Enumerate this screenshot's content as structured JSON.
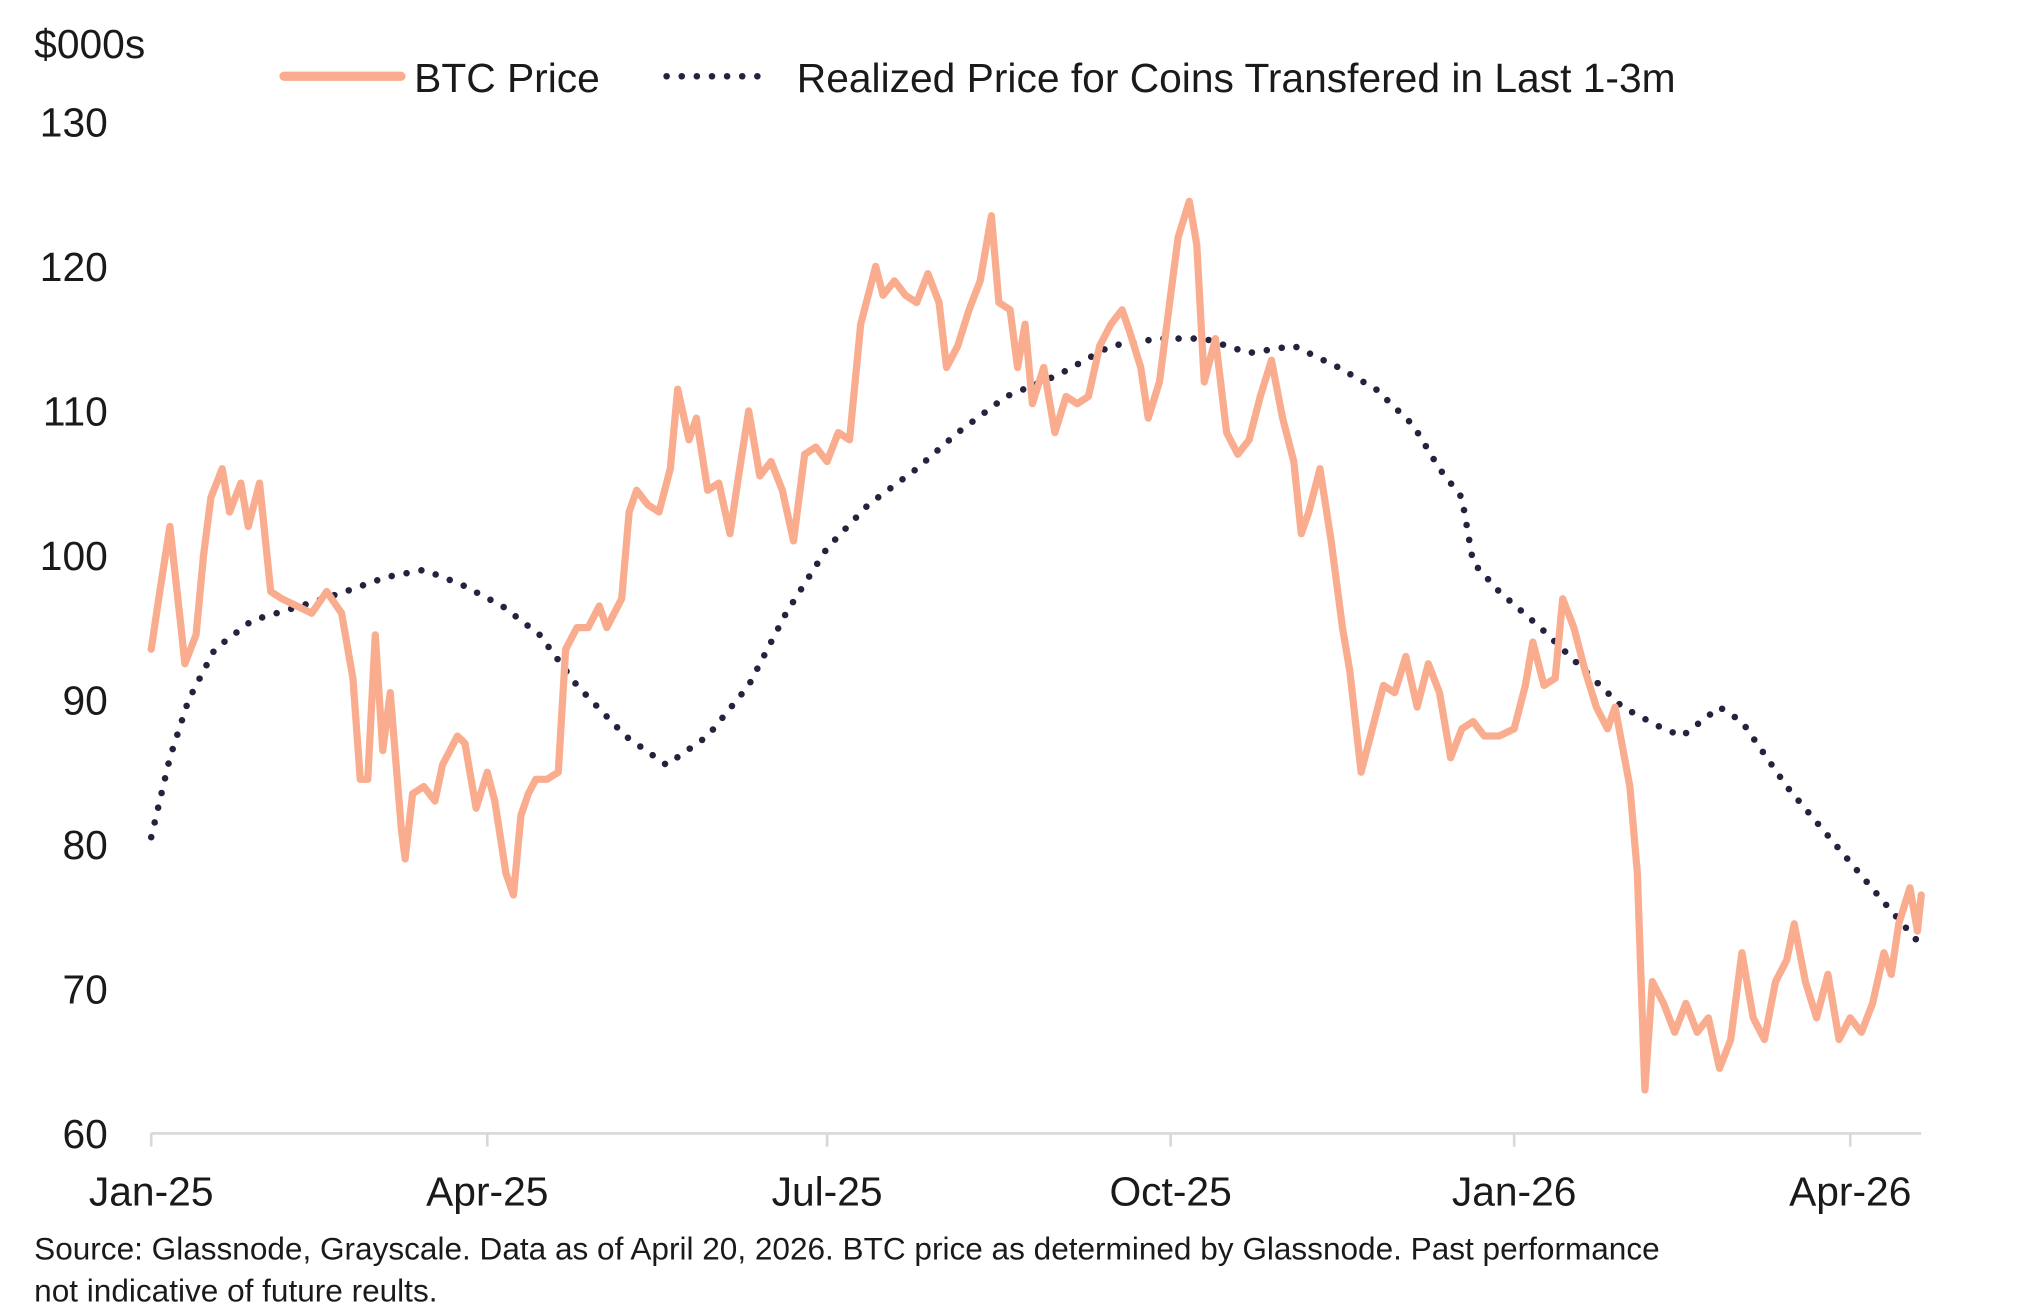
{
  "chart_data": {
    "type": "line",
    "title": "",
    "ylabel": "$000s",
    "xlabel": "",
    "ylim": [
      60,
      130
    ],
    "xlim": [
      "2025-01-01",
      "2026-04-20"
    ],
    "grid": false,
    "legend_placement": "top",
    "yticks": [
      "60",
      "70",
      "80",
      "90",
      "100",
      "110",
      "120",
      "130"
    ],
    "xticks": [
      {
        "label": "Jan-25",
        "date": "2025-01-01"
      },
      {
        "label": "Apr-25",
        "date": "2025-04-01"
      },
      {
        "label": "Jul-25",
        "date": "2025-07-01"
      },
      {
        "label": "Oct-25",
        "date": "2025-10-01"
      },
      {
        "label": "Jan-26",
        "date": "2026-01-01"
      },
      {
        "label": "Apr-26",
        "date": "2026-04-01"
      }
    ],
    "series": [
      {
        "name": "BTC Price",
        "color": "#F9AD8E",
        "style": "solid",
        "points": [
          [
            "2025-01-01",
            93.5
          ],
          [
            "2025-01-03",
            97
          ],
          [
            "2025-01-06",
            102
          ],
          [
            "2025-01-09",
            95
          ],
          [
            "2025-01-10",
            92.5
          ],
          [
            "2025-01-13",
            94.5
          ],
          [
            "2025-01-15",
            100
          ],
          [
            "2025-01-17",
            104
          ],
          [
            "2025-01-20",
            106
          ],
          [
            "2025-01-22",
            103
          ],
          [
            "2025-01-25",
            105
          ],
          [
            "2025-01-27",
            102
          ],
          [
            "2025-01-30",
            105
          ],
          [
            "2025-02-02",
            97.5
          ],
          [
            "2025-02-05",
            97
          ],
          [
            "2025-02-09",
            96.5
          ],
          [
            "2025-02-13",
            96
          ],
          [
            "2025-02-17",
            97.5
          ],
          [
            "2025-02-21",
            96
          ],
          [
            "2025-02-24",
            91.5
          ],
          [
            "2025-02-26",
            84.5
          ],
          [
            "2025-02-28",
            84.5
          ],
          [
            "2025-03-02",
            94.5
          ],
          [
            "2025-03-04",
            86.5
          ],
          [
            "2025-03-06",
            90.5
          ],
          [
            "2025-03-09",
            81
          ],
          [
            "2025-03-10",
            79
          ],
          [
            "2025-03-12",
            83.5
          ],
          [
            "2025-03-15",
            84
          ],
          [
            "2025-03-18",
            83
          ],
          [
            "2025-03-20",
            85.5
          ],
          [
            "2025-03-24",
            87.5
          ],
          [
            "2025-03-26",
            87
          ],
          [
            "2025-03-29",
            82.5
          ],
          [
            "2025-04-01",
            85
          ],
          [
            "2025-04-03",
            83
          ],
          [
            "2025-04-06",
            78
          ],
          [
            "2025-04-08",
            76.5
          ],
          [
            "2025-04-10",
            82
          ],
          [
            "2025-04-12",
            83.5
          ],
          [
            "2025-04-14",
            84.5
          ],
          [
            "2025-04-17",
            84.5
          ],
          [
            "2025-04-20",
            85
          ],
          [
            "2025-04-22",
            93.5
          ],
          [
            "2025-04-25",
            95
          ],
          [
            "2025-04-28",
            95
          ],
          [
            "2025-05-01",
            96.5
          ],
          [
            "2025-05-03",
            95
          ],
          [
            "2025-05-07",
            97
          ],
          [
            "2025-05-09",
            103
          ],
          [
            "2025-05-11",
            104.5
          ],
          [
            "2025-05-14",
            103.5
          ],
          [
            "2025-05-17",
            103
          ],
          [
            "2025-05-20",
            106
          ],
          [
            "2025-05-22",
            111.5
          ],
          [
            "2025-05-25",
            108
          ],
          [
            "2025-05-27",
            109.5
          ],
          [
            "2025-05-30",
            104.5
          ],
          [
            "2025-06-02",
            105
          ],
          [
            "2025-06-05",
            101.5
          ],
          [
            "2025-06-07",
            105
          ],
          [
            "2025-06-10",
            110
          ],
          [
            "2025-06-13",
            105.5
          ],
          [
            "2025-06-16",
            106.5
          ],
          [
            "2025-06-19",
            104.5
          ],
          [
            "2025-06-22",
            101
          ],
          [
            "2025-06-25",
            107
          ],
          [
            "2025-06-28",
            107.5
          ],
          [
            "2025-07-01",
            106.5
          ],
          [
            "2025-07-04",
            108.5
          ],
          [
            "2025-07-07",
            108
          ],
          [
            "2025-07-10",
            116
          ],
          [
            "2025-07-14",
            120
          ],
          [
            "2025-07-16",
            118
          ],
          [
            "2025-07-19",
            119
          ],
          [
            "2025-07-22",
            118
          ],
          [
            "2025-07-25",
            117.5
          ],
          [
            "2025-07-28",
            119.5
          ],
          [
            "2025-07-31",
            117.5
          ],
          [
            "2025-08-02",
            113
          ],
          [
            "2025-08-05",
            114.5
          ],
          [
            "2025-08-08",
            117
          ],
          [
            "2025-08-11",
            119
          ],
          [
            "2025-08-14",
            123.5
          ],
          [
            "2025-08-16",
            117.5
          ],
          [
            "2025-08-19",
            117
          ],
          [
            "2025-08-21",
            113
          ],
          [
            "2025-08-23",
            116
          ],
          [
            "2025-08-25",
            110.5
          ],
          [
            "2025-08-28",
            113
          ],
          [
            "2025-08-31",
            108.5
          ],
          [
            "2025-09-03",
            111
          ],
          [
            "2025-09-06",
            110.5
          ],
          [
            "2025-09-09",
            111
          ],
          [
            "2025-09-12",
            114.5
          ],
          [
            "2025-09-15",
            116
          ],
          [
            "2025-09-18",
            117
          ],
          [
            "2025-09-20",
            115.5
          ],
          [
            "2025-09-23",
            113
          ],
          [
            "2025-09-25",
            109.5
          ],
          [
            "2025-09-28",
            112
          ],
          [
            "2025-10-01",
            118
          ],
          [
            "2025-10-03",
            122
          ],
          [
            "2025-10-06",
            124.5
          ],
          [
            "2025-10-08",
            121.5
          ],
          [
            "2025-10-10",
            112
          ],
          [
            "2025-10-13",
            115
          ],
          [
            "2025-10-16",
            108.5
          ],
          [
            "2025-10-19",
            107
          ],
          [
            "2025-10-22",
            108
          ],
          [
            "2025-10-25",
            111
          ],
          [
            "2025-10-28",
            113.5
          ],
          [
            "2025-10-31",
            109.5
          ],
          [
            "2025-11-03",
            106.5
          ],
          [
            "2025-11-05",
            101.5
          ],
          [
            "2025-11-07",
            103
          ],
          [
            "2025-11-10",
            106
          ],
          [
            "2025-11-13",
            101
          ],
          [
            "2025-11-16",
            95
          ],
          [
            "2025-11-18",
            92
          ],
          [
            "2025-11-21",
            85
          ],
          [
            "2025-11-24",
            88
          ],
          [
            "2025-11-27",
            91
          ],
          [
            "2025-11-30",
            90.5
          ],
          [
            "2025-12-03",
            93
          ],
          [
            "2025-12-06",
            89.5
          ],
          [
            "2025-12-09",
            92.5
          ],
          [
            "2025-12-12",
            90.5
          ],
          [
            "2025-12-15",
            86
          ],
          [
            "2025-12-18",
            88
          ],
          [
            "2025-12-21",
            88.5
          ],
          [
            "2025-12-24",
            87.5
          ],
          [
            "2025-12-28",
            87.5
          ],
          [
            "2026-01-01",
            88
          ],
          [
            "2026-01-04",
            91
          ],
          [
            "2026-01-06",
            94
          ],
          [
            "2026-01-09",
            91
          ],
          [
            "2026-01-12",
            91.5
          ],
          [
            "2026-01-14",
            97
          ],
          [
            "2026-01-17",
            95
          ],
          [
            "2026-01-20",
            92
          ],
          [
            "2026-01-23",
            89.5
          ],
          [
            "2026-01-26",
            88
          ],
          [
            "2026-01-28",
            89.5
          ],
          [
            "2026-02-01",
            84
          ],
          [
            "2026-02-03",
            78
          ],
          [
            "2026-02-05",
            63
          ],
          [
            "2026-02-07",
            70.5
          ],
          [
            "2026-02-10",
            69
          ],
          [
            "2026-02-13",
            67
          ],
          [
            "2026-02-16",
            69
          ],
          [
            "2026-02-19",
            67
          ],
          [
            "2026-02-22",
            68
          ],
          [
            "2026-02-25",
            64.5
          ],
          [
            "2026-02-28",
            66.5
          ],
          [
            "2026-03-03",
            72.5
          ],
          [
            "2026-03-06",
            68
          ],
          [
            "2026-03-09",
            66.5
          ],
          [
            "2026-03-12",
            70.5
          ],
          [
            "2026-03-15",
            72
          ],
          [
            "2026-03-17",
            74.5
          ],
          [
            "2026-03-20",
            70.5
          ],
          [
            "2026-03-23",
            68
          ],
          [
            "2026-03-26",
            71
          ],
          [
            "2026-03-29",
            66.5
          ],
          [
            "2026-04-01",
            68
          ],
          [
            "2026-04-04",
            67
          ],
          [
            "2026-04-07",
            69
          ],
          [
            "2026-04-10",
            72.5
          ],
          [
            "2026-04-12",
            71
          ],
          [
            "2026-04-14",
            74.5
          ],
          [
            "2026-04-17",
            77
          ],
          [
            "2026-04-19",
            74
          ],
          [
            "2026-04-20",
            76.5
          ]
        ]
      },
      {
        "name": "Realized Price for Coins Transfered in Last 1-3m",
        "color": "#25213F",
        "style": "dotted",
        "points": [
          [
            "2025-01-01",
            80.5
          ],
          [
            "2025-01-06",
            86
          ],
          [
            "2025-01-11",
            90
          ],
          [
            "2025-01-18",
            93.5
          ],
          [
            "2025-01-28",
            95.5
          ],
          [
            "2025-02-10",
            96.5
          ],
          [
            "2025-02-22",
            97.5
          ],
          [
            "2025-03-05",
            98.5
          ],
          [
            "2025-03-15",
            99
          ],
          [
            "2025-03-25",
            98
          ],
          [
            "2025-04-05",
            96.5
          ],
          [
            "2025-04-15",
            94.5
          ],
          [
            "2025-04-25",
            91
          ],
          [
            "2025-05-08",
            87.5
          ],
          [
            "2025-05-19",
            85.5
          ],
          [
            "2025-05-30",
            87.5
          ],
          [
            "2025-06-10",
            91
          ],
          [
            "2025-06-20",
            96
          ],
          [
            "2025-07-01",
            100.5
          ],
          [
            "2025-07-12",
            103.5
          ],
          [
            "2025-07-25",
            106
          ],
          [
            "2025-08-05",
            108.5
          ],
          [
            "2025-08-18",
            111
          ],
          [
            "2025-09-01",
            112.5
          ],
          [
            "2025-09-15",
            114.5
          ],
          [
            "2025-09-28",
            115
          ],
          [
            "2025-10-10",
            115
          ],
          [
            "2025-10-22",
            114
          ],
          [
            "2025-11-03",
            114.5
          ],
          [
            "2025-11-15",
            113
          ],
          [
            "2025-11-25",
            111.5
          ],
          [
            "2025-12-05",
            109
          ],
          [
            "2025-12-12",
            106
          ],
          [
            "2025-12-18",
            104
          ],
          [
            "2025-12-21",
            99.5
          ],
          [
            "2025-12-28",
            97.5
          ],
          [
            "2026-01-08",
            95
          ],
          [
            "2026-01-18",
            92.5
          ],
          [
            "2026-01-30",
            89.5
          ],
          [
            "2026-02-10",
            88
          ],
          [
            "2026-02-15",
            87.5
          ],
          [
            "2026-02-25",
            89.5
          ],
          [
            "2026-03-03",
            88.5
          ],
          [
            "2026-03-15",
            84
          ],
          [
            "2026-03-28",
            80
          ],
          [
            "2026-04-10",
            76
          ],
          [
            "2026-04-20",
            73
          ]
        ]
      }
    ],
    "source_note": "Source: Glassnode, Grayscale. Data as of April 20, 2026. BTC price as determined by Glassnode. Past performance",
    "source_note_2": "not indicative of future reults."
  }
}
